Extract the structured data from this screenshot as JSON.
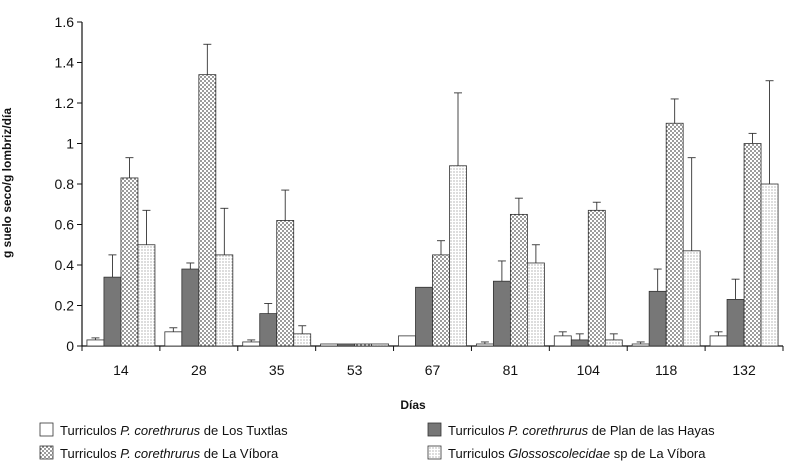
{
  "chart_data": {
    "type": "bar",
    "title": "",
    "xlabel": "Días",
    "ylabel": "g suelo seco/g lombriz/día",
    "ylim": [
      0,
      1.6
    ],
    "yticks": [
      "0",
      "0.2",
      "0.4",
      "0.6",
      "0.8",
      "1",
      "1.2",
      "1.4",
      "1.6"
    ],
    "categories": [
      "14",
      "28",
      "35",
      "53",
      "67",
      "81",
      "104",
      "118",
      "132"
    ],
    "grid": false,
    "legend_position": "bottom",
    "colors": {
      "axis": "#111111",
      "series_1_fill": "#ffffff",
      "series_2_fill": "#777777",
      "series_3_fill": "#d2d2d2",
      "series_4_fill": "#e3e3e3"
    },
    "series": [
      {
        "name": "Turriculos P. corethrurus de Los Tuxtlas",
        "pattern": "white",
        "values": [
          0.03,
          0.07,
          0.02,
          0.01,
          0.05,
          0.01,
          0.05,
          0.01,
          0.05
        ],
        "errors": [
          0.01,
          0.02,
          0.01,
          0.0,
          0.0,
          0.01,
          0.02,
          0.01,
          0.02
        ]
      },
      {
        "name": "Turriculos P. corethrurus de Plan de las Hayas",
        "pattern": "dark-gray",
        "values": [
          0.34,
          0.38,
          0.16,
          0.01,
          0.29,
          0.32,
          0.03,
          0.27,
          0.23
        ],
        "errors": [
          0.11,
          0.03,
          0.05,
          0.0,
          0.0,
          0.1,
          0.03,
          0.11,
          0.1
        ]
      },
      {
        "name": "Turriculos P. corethrurus de La Víbora",
        "pattern": "dots",
        "values": [
          0.83,
          1.34,
          0.62,
          0.01,
          0.45,
          0.65,
          0.67,
          1.1,
          1.0
        ],
        "errors": [
          0.1,
          0.15,
          0.15,
          0.0,
          0.07,
          0.08,
          0.04,
          0.12,
          0.05
        ]
      },
      {
        "name": "Turriculos Glossoscolecidae sp de La Víbora",
        "pattern": "fine-dots",
        "values": [
          0.5,
          0.45,
          0.06,
          0.01,
          0.89,
          0.41,
          0.03,
          0.47,
          0.8
        ],
        "errors": [
          0.17,
          0.23,
          0.04,
          0.0,
          0.36,
          0.09,
          0.03,
          0.46,
          0.51
        ]
      }
    ]
  },
  "legend": {
    "entries": [
      {
        "prefix": "Turriculos ",
        "italic": "P. corethrurus",
        "suffix": " de Los Tuxtlas"
      },
      {
        "prefix": "Turriculos ",
        "italic": "P. corethrurus",
        "suffix": " de Plan de las Hayas"
      },
      {
        "prefix": "Turriculos ",
        "italic": "P. corethrurus",
        "suffix": " de La Víbora"
      },
      {
        "prefix": "Turriculos ",
        "italic": "Glossoscolecidae",
        "suffix": " sp de La Víbora"
      }
    ]
  }
}
